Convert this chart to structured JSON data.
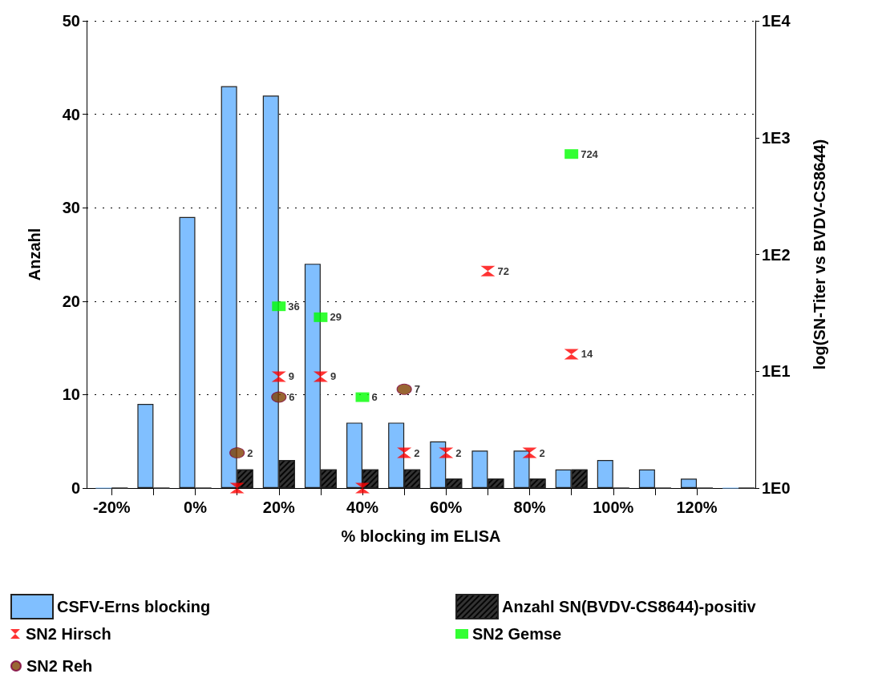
{
  "chart_data": {
    "type": "bar",
    "xlabel": "% blocking im ELISA",
    "ylabel": "Anzahl",
    "y2label": "log(SN-Titer vs BVDV-CS8644)",
    "x": [
      -20,
      -10,
      0,
      10,
      20,
      30,
      40,
      50,
      60,
      70,
      80,
      90,
      100,
      110,
      120,
      130
    ],
    "xlim": [
      -26,
      134
    ],
    "xticks": [
      {
        "value": -20,
        "label": "-20%"
      },
      {
        "value": -10,
        "label": null
      },
      {
        "value": 0,
        "label": "0%"
      },
      {
        "value": 10,
        "label": null
      },
      {
        "value": 20,
        "label": "20%"
      },
      {
        "value": 30,
        "label": null
      },
      {
        "value": 40,
        "label": "40%"
      },
      {
        "value": 50,
        "label": null
      },
      {
        "value": 60,
        "label": "60%"
      },
      {
        "value": 70,
        "label": null
      },
      {
        "value": 80,
        "label": "80%"
      },
      {
        "value": 90,
        "label": null
      },
      {
        "value": 100,
        "label": "100%"
      },
      {
        "value": 110,
        "label": null
      },
      {
        "value": 120,
        "label": "120%"
      }
    ],
    "ylim": [
      0,
      50
    ],
    "yticks": [
      0,
      10,
      20,
      30,
      40,
      50
    ],
    "y2lim": [
      1,
      10000
    ],
    "y2ticks": [
      {
        "value": 1,
        "label": "1E0"
      },
      {
        "value": 10,
        "label": "1E1"
      },
      {
        "value": 100,
        "label": "1E2"
      },
      {
        "value": 1000,
        "label": "1E3"
      },
      {
        "value": 10000,
        "label": "1E4"
      }
    ],
    "log": "y2",
    "grid": "y",
    "legend": "bottom",
    "series": [
      {
        "name": "CSFV-Erns blocking",
        "color": "#80bfff",
        "values": [
          0,
          9,
          29,
          43,
          42,
          24,
          7,
          7,
          5,
          4,
          4,
          2,
          3,
          2,
          1,
          0
        ]
      },
      {
        "name": "Anzahl SN(BVDV-CS8644)-positiv",
        "color": "#333333",
        "values": [
          0,
          0,
          0,
          2,
          3,
          2,
          2,
          2,
          1,
          1,
          1,
          2,
          0,
          0,
          0,
          0
        ]
      },
      {
        "name": "SN2 Hirsch",
        "type": "scatter",
        "axis": "y2",
        "marker": "triangle",
        "color": "#ff0000",
        "x": [
          10,
          20,
          30,
          40,
          50,
          60,
          70,
          80,
          90
        ],
        "values": [
          1,
          9,
          9,
          1,
          2,
          2,
          72,
          2,
          14
        ],
        "value_labels": [
          null,
          "9",
          "9",
          null,
          "2",
          "2",
          "72",
          "2",
          "14"
        ]
      },
      {
        "name": "SN2 Gemse",
        "type": "scatter",
        "axis": "y2",
        "marker": "square",
        "color": "#00ff00",
        "x": [
          20,
          30,
          40,
          90
        ],
        "values": [
          36,
          29,
          6,
          724
        ],
        "value_labels": [
          "36",
          "29",
          "6",
          "724"
        ]
      },
      {
        "name": "SN2 Reh",
        "type": "scatter",
        "axis": "y2",
        "marker": "circle",
        "color": "#804000",
        "x": [
          10,
          20,
          50
        ],
        "values": [
          2,
          6,
          7
        ],
        "value_labels": [
          "2",
          "6",
          "7"
        ]
      }
    ]
  }
}
